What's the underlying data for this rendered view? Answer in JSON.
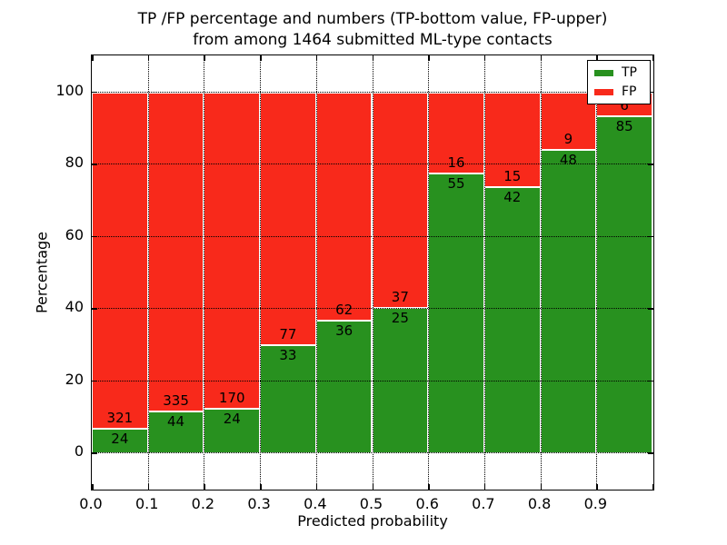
{
  "chart_data": {
    "type": "bar",
    "stacked": true,
    "title_line1": "TP /FP percentage and numbers (TP-bottom value, FP-upper)",
    "title_line2": "from among 1464 submitted ML-type contacts",
    "xlabel": "Predicted probability",
    "ylabel": "Percentage",
    "total_submitted": 1464,
    "bin_edges": [
      0.0,
      0.1,
      0.2,
      0.3,
      0.4,
      0.5,
      0.6,
      0.7,
      0.8,
      0.9,
      1.0
    ],
    "x_tick_labels": [
      "0.0",
      "0.1",
      "0.2",
      "0.3",
      "0.4",
      "0.5",
      "0.6",
      "0.7",
      "0.8",
      "0.9"
    ],
    "y_ticks": [
      0,
      20,
      40,
      60,
      80,
      100
    ],
    "ylim": [
      -10,
      110
    ],
    "bar_value_unit": "percent of bin total (TP+FP stacked to 100%)",
    "series": [
      {
        "name": "TP",
        "color": "#28911F",
        "counts": [
          24,
          44,
          24,
          33,
          36,
          25,
          55,
          42,
          48,
          85
        ]
      },
      {
        "name": "FP",
        "color": "#F8291B",
        "counts": [
          321,
          335,
          170,
          77,
          62,
          37,
          16,
          15,
          9,
          6
        ]
      }
    ],
    "legend": {
      "position": "upper right",
      "entries": [
        "TP",
        "FP"
      ]
    },
    "grid": {
      "style": "dotted",
      "color": "#000000",
      "horizontal_at": [
        0,
        20,
        40,
        60,
        80,
        100
      ],
      "vertical_at": [
        0.1,
        0.2,
        0.3,
        0.4,
        0.5,
        0.6,
        0.7,
        0.8,
        0.9
      ]
    }
  }
}
